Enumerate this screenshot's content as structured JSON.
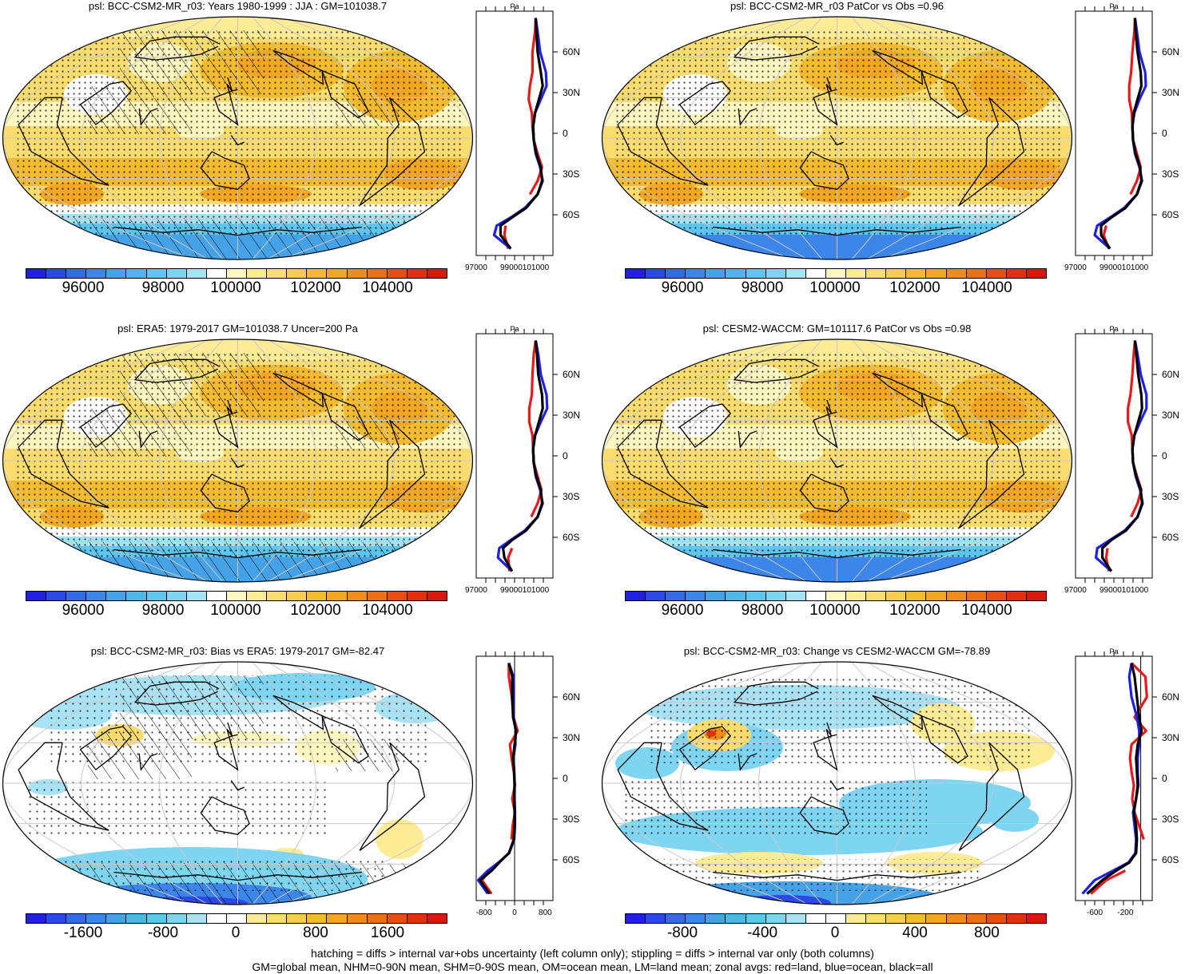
{
  "panels": [
    {
      "title": "psl: BCC-CSM2-MR_r03: Years 1980-1999 : JJA : GM=101038.7",
      "field": "abs",
      "hatch": true,
      "stipple": "dense",
      "colorbar": {
        "colors": "abs",
        "labels": [
          "96000",
          "98000",
          "100000",
          "102000",
          "104000"
        ]
      },
      "zonal": {
        "unit": "Pa",
        "lat_labels": [
          "60N",
          "30N",
          "0",
          "30S",
          "60S"
        ],
        "x_labels": [
          "97000",
          "99000101000"
        ],
        "zero_line": false,
        "range": [
          96500,
          102500
        ],
        "lat": [
          85,
          75,
          60,
          45,
          35,
          25,
          15,
          5,
          -5,
          -15,
          -25,
          -35,
          -45,
          -55,
          -62,
          -68,
          -75,
          -85
        ],
        "all": [
          101150,
          101200,
          101300,
          101550,
          101700,
          101400,
          101100,
          100950,
          101000,
          101200,
          101550,
          101650,
          101300,
          100400,
          99300,
          98400,
          98400,
          99200
        ],
        "land": [
          101150,
          101100,
          100900,
          100900,
          100700,
          100600,
          100850,
          100900,
          101000,
          101300,
          101650,
          101300,
          100700,
          null,
          null,
          98800,
          98700,
          99000
        ],
        "ocean": [
          101150,
          101300,
          101500,
          101950,
          102000,
          101550,
          101100,
          100950,
          101000,
          101150,
          101500,
          101700,
          101300,
          100300,
          99200,
          98100,
          97900,
          99200
        ]
      }
    },
    {
      "title": "psl: BCC-CSM2-MR_r03 PatCor vs Obs =0.96",
      "field": "abs",
      "hatch": false,
      "stipple": "dense",
      "colorbar": {
        "colors": "abs",
        "labels": [
          "96000",
          "98000",
          "100000",
          "102000",
          "104000"
        ]
      },
      "zonal": {
        "unit": "Pa",
        "lat_labels": [
          "60N",
          "30N",
          "0",
          "30S",
          "60S"
        ],
        "x_labels": [
          "97000",
          "99000101000"
        ],
        "zero_line": false,
        "range": [
          96500,
          102500
        ],
        "lat": [
          85,
          75,
          60,
          45,
          35,
          25,
          15,
          5,
          -5,
          -15,
          -25,
          -35,
          -45,
          -55,
          -62,
          -68,
          -75,
          -85
        ],
        "all": [
          101150,
          101200,
          101350,
          101600,
          101650,
          101350,
          101050,
          100950,
          101000,
          101200,
          101550,
          101650,
          101300,
          100400,
          99300,
          98500,
          98500,
          99200
        ],
        "land": [
          101150,
          101100,
          100950,
          100850,
          100700,
          100700,
          100900,
          100950,
          101000,
          101300,
          101600,
          101300,
          100800,
          null,
          null,
          98900,
          98700,
          99100
        ],
        "ocean": [
          101150,
          101300,
          101500,
          101950,
          102000,
          101500,
          101100,
          100950,
          101000,
          101150,
          101500,
          101700,
          101300,
          100300,
          99200,
          98200,
          98000,
          99200
        ]
      }
    },
    {
      "title": "psl: ERA5: 1979-2017 GM=101038.7 Uncer=200 Pa",
      "field": "abs",
      "hatch": true,
      "stipple": "dense",
      "colorbar": {
        "colors": "abs",
        "labels": [
          "96000",
          "98000",
          "100000",
          "102000",
          "104000"
        ]
      },
      "zonal": {
        "unit": "Pa",
        "lat_labels": [
          "60N",
          "30N",
          "0",
          "30S",
          "60S"
        ],
        "x_labels": [
          "97000",
          "99000101000"
        ],
        "zero_line": false,
        "range": [
          96500,
          102500
        ],
        "lat": [
          85,
          75,
          60,
          45,
          35,
          25,
          15,
          5,
          -5,
          -15,
          -25,
          -35,
          -45,
          -55,
          -62,
          -68,
          -75,
          -85
        ],
        "all": [
          101150,
          101250,
          101350,
          101650,
          101700,
          101400,
          101100,
          100950,
          101000,
          101200,
          101550,
          101650,
          101300,
          100400,
          99300,
          98600,
          98700,
          99300
        ],
        "land": [
          101150,
          101000,
          100900,
          100850,
          100650,
          100650,
          100900,
          100950,
          101000,
          101300,
          101600,
          101300,
          100800,
          null,
          null,
          99300,
          99000,
          99100
        ],
        "ocean": [
          101150,
          101350,
          101550,
          102000,
          102050,
          101550,
          101100,
          100950,
          101000,
          101150,
          101500,
          101700,
          101300,
          100300,
          99200,
          98300,
          98200,
          99300
        ]
      }
    },
    {
      "title": "psl: CESM2-WACCM: GM=101117.6 PatCor vs Obs =0.98",
      "field": "abs",
      "hatch": false,
      "stipple": "dense",
      "colorbar": {
        "colors": "abs",
        "labels": [
          "96000",
          "98000",
          "100000",
          "102000",
          "104000"
        ]
      },
      "zonal": {
        "unit": "Pa",
        "lat_labels": [
          "60N",
          "30N",
          "0",
          "30S",
          "60S"
        ],
        "x_labels": [
          "97000",
          "99000101000"
        ],
        "zero_line": false,
        "range": [
          96500,
          102500
        ],
        "lat": [
          85,
          75,
          60,
          45,
          35,
          25,
          15,
          5,
          -5,
          -15,
          -25,
          -35,
          -45,
          -55,
          -62,
          -68,
          -75,
          -85
        ],
        "all": [
          101150,
          101250,
          101400,
          101650,
          101700,
          101400,
          101100,
          100950,
          101000,
          101250,
          101600,
          101700,
          101350,
          100450,
          99300,
          98600,
          98600,
          99300
        ],
        "land": [
          101150,
          101050,
          100950,
          100800,
          100600,
          100600,
          100900,
          100950,
          101000,
          101300,
          101650,
          101350,
          100850,
          null,
          null,
          99000,
          98900,
          99100
        ],
        "ocean": [
          101150,
          101350,
          101600,
          102050,
          102050,
          101550,
          101100,
          100950,
          101000,
          101200,
          101550,
          101750,
          101350,
          100350,
          99200,
          98200,
          98100,
          99300
        ]
      }
    },
    {
      "title": "psl: BCC-CSM2-MR_r03: Bias vs ERA5: 1979-2017 GM=-82.47",
      "field": "bias",
      "hatch": true,
      "stipple": "sparse",
      "colorbar": {
        "colors": "diff",
        "labels": [
          "-1600",
          "-800",
          "0",
          "800",
          "1600"
        ]
      },
      "zonal": {
        "unit": "",
        "lat_labels": [
          "60N",
          "30N",
          "0",
          "30S",
          "60S"
        ],
        "x_labels": [
          "-800",
          "0",
          "800"
        ],
        "zero_line": true,
        "range": [
          -1000,
          1000
        ],
        "lat": [
          85,
          75,
          60,
          45,
          35,
          25,
          15,
          5,
          -5,
          -15,
          -25,
          -35,
          -45,
          -55,
          -62,
          -68,
          -75,
          -85
        ],
        "all": [
          -150,
          -60,
          -60,
          -40,
          40,
          0,
          -40,
          -10,
          0,
          -10,
          0,
          0,
          -20,
          -150,
          -400,
          -600,
          -900,
          -650
        ],
        "land": [
          -150,
          -150,
          -70,
          -30,
          80,
          -120,
          -80,
          -20,
          10,
          -60,
          10,
          -50,
          -80,
          null,
          null,
          -650,
          -850,
          -600
        ],
        "ocean": [
          -150,
          -30,
          -40,
          -20,
          30,
          20,
          -30,
          -10,
          0,
          0,
          10,
          10,
          -10,
          -140,
          -420,
          -700,
          -950,
          -700
        ]
      }
    },
    {
      "title": "psl: BCC-CSM2-MR_r03: Change vs CESM2-WACCM GM=-78.89",
      "field": "change",
      "hatch": false,
      "stipple": "medium",
      "colorbar": {
        "colors": "diff",
        "labels": [
          "-800",
          "-400",
          "0",
          "400",
          "800"
        ]
      },
      "zonal": {
        "unit": "Pa",
        "lat_labels": [
          "60N",
          "30N",
          "0",
          "30S",
          "60S"
        ],
        "x_labels": [
          "-600",
          "-200"
        ],
        "zero_line": true,
        "range": [
          -850,
          150
        ],
        "lat": [
          85,
          75,
          60,
          45,
          35,
          25,
          15,
          5,
          -5,
          -15,
          -25,
          -35,
          -45,
          -55,
          -62,
          -68,
          -75,
          -85
        ],
        "all": [
          -120,
          -80,
          -50,
          -20,
          10,
          -40,
          -60,
          -50,
          -40,
          -60,
          -90,
          -60,
          -50,
          -60,
          -150,
          -320,
          -500,
          -700
        ],
        "land": [
          -120,
          60,
          80,
          -80,
          70,
          -120,
          -140,
          -120,
          -90,
          -110,
          -80,
          -20,
          40,
          null,
          null,
          -200,
          -450,
          -650
        ],
        "ocean": [
          -120,
          -150,
          -120,
          -50,
          -20,
          -20,
          -40,
          -40,
          -30,
          -60,
          -100,
          -80,
          -60,
          -70,
          -160,
          -360,
          -600,
          -760
        ]
      }
    }
  ],
  "footer": {
    "line1": "hatching = diffs > internal var+obs uncertainty (left column only); stippling = diffs > internal var only (both columns)",
    "line2": "GM=global mean, NHM=0-90N mean, SHM=0-90S mean, OM=ocean mean, LM=land mean; zonal avgs: red=land, blue=ocean, black=all"
  },
  "colors": {
    "abs": [
      "#1f1fe6",
      "#2b49e8",
      "#3469e8",
      "#3b86e8",
      "#46a2e6",
      "#4fb6ea",
      "#5cc6ef",
      "#7ed5f2",
      "#a8e2f5",
      "#ffffff",
      "#fff7bf",
      "#fdeb96",
      "#fbdc6e",
      "#f8cc4c",
      "#f5bb2f",
      "#f3a622",
      "#f08d1a",
      "#ec6f14",
      "#e84e10",
      "#e2300d",
      "#d8180b"
    ],
    "diff": [
      "#1f1fe6",
      "#2b49e8",
      "#3469e8",
      "#3b86e8",
      "#46a2e6",
      "#4fb6ea",
      "#5cc6ef",
      "#7ed5f2",
      "#a8e2f5",
      "#ffffff",
      "#ffffff",
      "#fdeb96",
      "#fbdc6e",
      "#f8cc4c",
      "#f5bb2f",
      "#f3a622",
      "#f08d1a",
      "#ec6f14",
      "#e84e10",
      "#e2300d",
      "#d8180b"
    ],
    "line_all": "#000000",
    "line_land": "#e8181b",
    "line_ocean": "#1f1fe6"
  }
}
